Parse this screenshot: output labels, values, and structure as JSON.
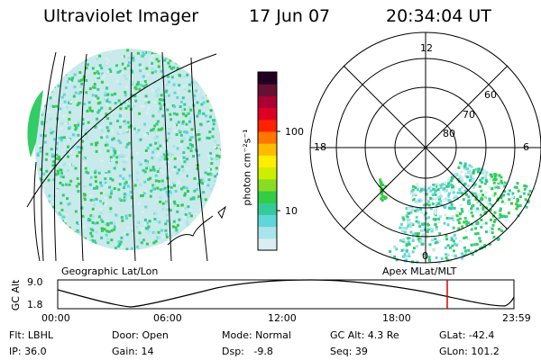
{
  "header": {
    "instrument": "Ultraviolet Imager",
    "date": "17 Jun 07",
    "time": "20:34:04 UT"
  },
  "left_panel": {
    "caption": "Geographic Lat/Lon"
  },
  "colorbar": {
    "unit_label": "photon cm⁻²s⁻¹",
    "ticks": [
      "100",
      "10"
    ],
    "colors": [
      "#d8eef0",
      "#a8e4ea",
      "#5fd6d8",
      "#33cc99",
      "#33cc44",
      "#88dd22",
      "#ccee00",
      "#ffee00",
      "#ffbb00",
      "#ff7700",
      "#ff2200",
      "#dd0022",
      "#aa0033",
      "#661133",
      "#220022"
    ]
  },
  "right_panel": {
    "caption": "Apex MLat/MLT",
    "mlt_labels": {
      "top": "12",
      "left": "18",
      "right": "6",
      "bottom": "0"
    },
    "mlat_labels": [
      "60",
      "70",
      "80"
    ]
  },
  "altitude_plot": {
    "ylabel": "GC Alt",
    "yticks": [
      "9.0",
      "1.8"
    ],
    "xticks": [
      "00:00",
      "06:00",
      "12:00",
      "18:00",
      "23:59"
    ],
    "marker_color": "#dd0000"
  },
  "status": {
    "flt": "Flt: LBHL",
    "ip": "IP: 36.0",
    "door": "Door: Open",
    "gain": "Gain: 14",
    "mode": "Mode: Normal",
    "dsp": "Dsp:   -9.8",
    "gcalt": "GC Alt: 4.3 Re",
    "seq": "Seq: 39",
    "glat": "GLat: -42.4",
    "glon": "GLon: 101.2"
  }
}
